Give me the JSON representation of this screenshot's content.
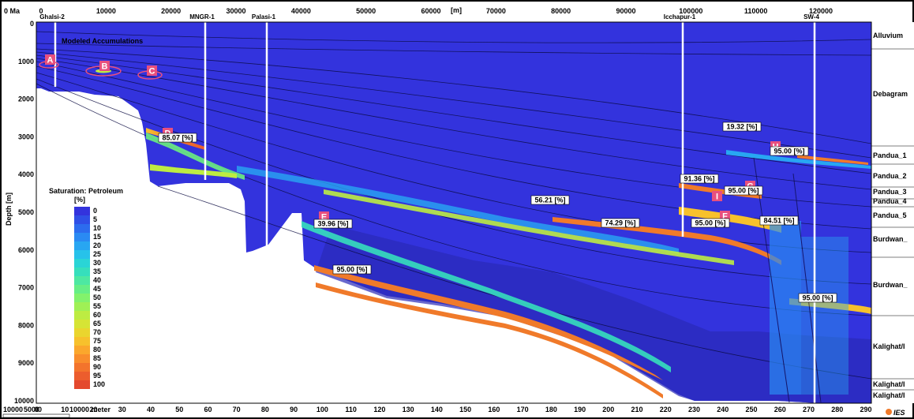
{
  "header": {
    "ma_label": "0 Ma",
    "unit_label": "[m]"
  },
  "top_axis": [
    "0",
    "10000",
    "20000",
    "30000",
    "40000",
    "50000",
    "60000",
    "70000",
    "80000",
    "90000",
    "100000",
    "110000",
    "120000"
  ],
  "bottom_axis": [
    "0",
    "10",
    "20",
    "30",
    "40",
    "50",
    "60",
    "70",
    "80",
    "90",
    "100",
    "110",
    "120",
    "130",
    "140",
    "150",
    "160",
    "170",
    "180",
    "190",
    "200",
    "210",
    "220",
    "230",
    "240",
    "250",
    "260",
    "270",
    "280",
    "290"
  ],
  "depth_axis": {
    "label": "Depth [m]",
    "ticks": [
      "0",
      "1000",
      "2000",
      "3000",
      "4000",
      "5000",
      "6000",
      "7000",
      "8000",
      "9000",
      "10000"
    ]
  },
  "wells": [
    "Ghalsi-2",
    "MNGR-1",
    "Palasi-1",
    "Icchapur-1",
    "SW-4"
  ],
  "formations": [
    "Alluvium",
    "Debagram",
    "Pandua_1",
    "Pandua_2",
    "Pandua_3",
    "Pandua_4",
    "Pandua_5",
    "Burdwan_",
    "Burdwan_",
    "Kalighat/I",
    "Kalighat/I",
    "Kalighat/I"
  ],
  "title_note": "Modeled Accumulations",
  "accumulation_letters": [
    "A",
    "B",
    "C",
    "D",
    "E",
    "F",
    "G",
    "H",
    "I"
  ],
  "saturation_labels": [
    "85.07 [%]",
    "39.96 [%]",
    "95.00 [%]",
    "56.21 [%]",
    "74.29 [%]",
    "95.00 [%]",
    "84.51 [%]",
    "91.36 [%]",
    "95.00 [%]",
    "19.32 [%]",
    "95.00 [%]",
    "95.00 [%]"
  ],
  "legend": {
    "title": "Saturation: Petroleum",
    "unit": "[%]",
    "values": [
      "0",
      "5",
      "10",
      "15",
      "20",
      "25",
      "30",
      "35",
      "40",
      "45",
      "50",
      "55",
      "60",
      "65",
      "70",
      "75",
      "80",
      "85",
      "90",
      "95",
      "100"
    ],
    "colors": [
      "#3333dd",
      "#2f4fe6",
      "#2c6cee",
      "#2a8af3",
      "#28a6f2",
      "#27c2ea",
      "#2ad5d6",
      "#36dfbc",
      "#4de8a2",
      "#66ee86",
      "#82f26c",
      "#9ff055",
      "#bdec42",
      "#d6e435",
      "#ead52e",
      "#f7c12c",
      "#fba72c",
      "#f98d2c",
      "#f3742c",
      "#ec5d2d",
      "#e4492e"
    ]
  },
  "scale_bar": {
    "labels": [
      "10000",
      "5000",
      "0",
      "10000 meter"
    ]
  },
  "logo": "IES",
  "colors": {
    "basin_blue": "#3333dd",
    "deep_blue": "#2a2ab8",
    "accumulation_orange": "#f07a2a",
    "letter_fill": "#e8507e"
  }
}
